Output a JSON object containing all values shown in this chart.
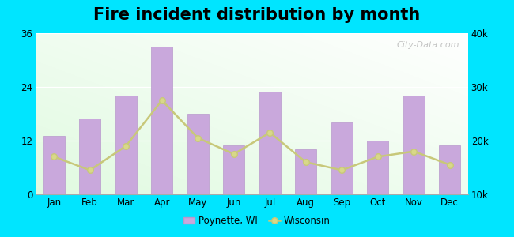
{
  "title": "Fire incident distribution by month",
  "months": [
    "Jan",
    "Feb",
    "Mar",
    "Apr",
    "May",
    "Jun",
    "Jul",
    "Aug",
    "Sep",
    "Oct",
    "Nov",
    "Dec"
  ],
  "poynette_values": [
    13,
    17,
    22,
    33,
    18,
    11,
    23,
    10,
    16,
    12,
    22,
    11
  ],
  "wisconsin_values": [
    17000,
    14500,
    19000,
    27500,
    20500,
    17500,
    21500,
    16000,
    14500,
    17000,
    18000,
    15500
  ],
  "bar_color": "#c9a8dc",
  "bar_edge_color": "#b898cc",
  "line_color": "#c8c87a",
  "line_marker_face": "#d8d888",
  "outer_bg": "#00e5ff",
  "left_ylim": [
    0,
    36
  ],
  "right_ylim": [
    10000,
    40000
  ],
  "left_yticks": [
    0,
    12,
    24,
    36
  ],
  "right_yticks": [
    10000,
    20000,
    30000,
    40000
  ],
  "right_ytick_labels": [
    "10k",
    "20k",
    "30k",
    "40k"
  ],
  "title_fontsize": 15,
  "legend_poynette": "Poynette, WI",
  "legend_wisconsin": "Wisconsin",
  "watermark": "City-Data.com"
}
